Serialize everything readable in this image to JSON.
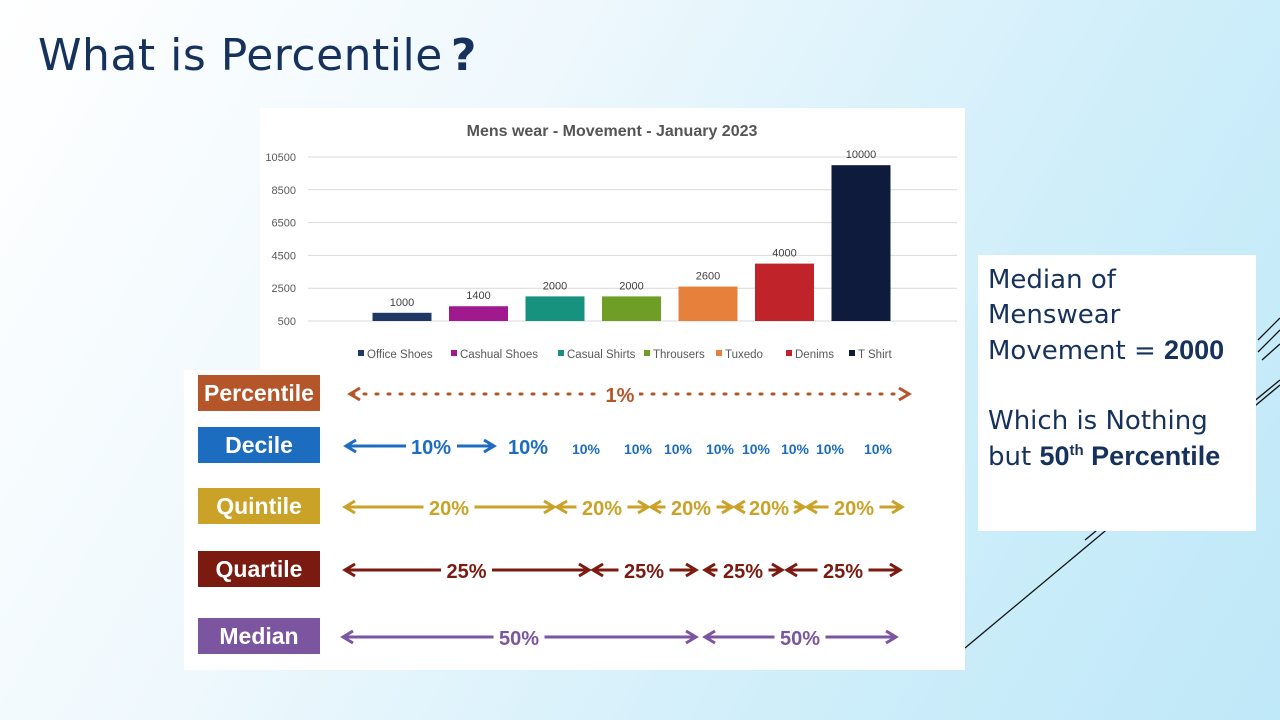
{
  "slide": {
    "title": "What is Percentile",
    "title_mark": "?"
  },
  "chart_data": {
    "type": "bar",
    "title": "Mens wear - Movement - January 2023",
    "categories": [
      "Office Shoes",
      "Cashual Shoes",
      "Casual Shirts",
      "Throusers",
      "Tuxedo",
      "Denims",
      "T Shirt"
    ],
    "values": [
      1000,
      1400,
      2000,
      2000,
      2600,
      4000,
      10000
    ],
    "colors": [
      "#1f3864",
      "#a0198f",
      "#16927e",
      "#6f9e26",
      "#e6803a",
      "#c0242a",
      "#0e1b3c"
    ],
    "yticks": [
      "500",
      "2500",
      "4500",
      "6500",
      "8500",
      "10500"
    ],
    "ylim": [
      500,
      10500
    ],
    "xlabel": "",
    "ylabel": "",
    "legend_position": "bottom",
    "grid": true
  },
  "scale": [
    {
      "label": "Percentile",
      "color": "#b5552a",
      "segments": [
        "1%"
      ]
    },
    {
      "label": "Decile",
      "color": "#1c6dbf",
      "segments": [
        "10%",
        "10%",
        "10%",
        "10%",
        "10%",
        "10%",
        "10%",
        "10%",
        "10%",
        "10%"
      ]
    },
    {
      "label": "Quintile",
      "color": "#c9a227",
      "segments": [
        "20%",
        "20%",
        "20%",
        "20%",
        "20%"
      ]
    },
    {
      "label": "Quartile",
      "color": "#7a1a10",
      "segments": [
        "25%",
        "25%",
        "25%",
        "25%"
      ]
    },
    {
      "label": "Median",
      "color": "#7b559f",
      "segments": [
        "50%",
        "50%"
      ]
    }
  ],
  "median_note": {
    "line1": "Median of",
    "line2": "Menswear",
    "line3_prefix": "Movement = ",
    "line3_value": "2000",
    "line4": "Which is Nothing",
    "line5_prefix": "but ",
    "line5_num": "50",
    "line5_sup": "th",
    "line5_suffix": " Percentile"
  }
}
